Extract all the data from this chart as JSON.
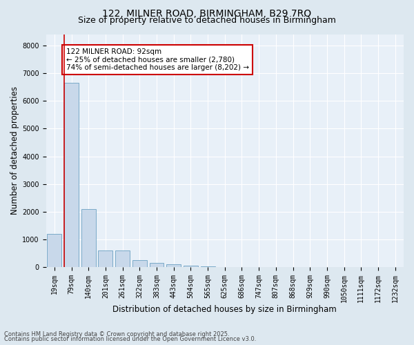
{
  "title1": "122, MILNER ROAD, BIRMINGHAM, B29 7RQ",
  "title2": "Size of property relative to detached houses in Birmingham",
  "xlabel": "Distribution of detached houses by size in Birmingham",
  "ylabel": "Number of detached properties",
  "categories": [
    "19sqm",
    "79sqm",
    "140sqm",
    "201sqm",
    "261sqm",
    "322sqm",
    "383sqm",
    "443sqm",
    "504sqm",
    "565sqm",
    "625sqm",
    "686sqm",
    "747sqm",
    "807sqm",
    "868sqm",
    "929sqm",
    "990sqm",
    "1050sqm",
    "1111sqm",
    "1172sqm",
    "1232sqm"
  ],
  "values": [
    1200,
    6650,
    2100,
    610,
    590,
    245,
    150,
    95,
    48,
    18,
    8,
    5,
    3,
    2,
    2,
    1,
    1,
    0,
    0,
    0,
    0
  ],
  "bar_color": "#c8d8ea",
  "bar_edge_color": "#7aaac8",
  "highlight_line_bar_index": 1,
  "highlight_line_color": "#cc0000",
  "annotation_text_line1": "122 MILNER ROAD: 92sqm",
  "annotation_text_line2": "← 25% of detached houses are smaller (2,780)",
  "annotation_text_line3": "74% of semi-detached houses are larger (8,202) →",
  "ylim": [
    0,
    8400
  ],
  "yticks": [
    0,
    1000,
    2000,
    3000,
    4000,
    5000,
    6000,
    7000,
    8000
  ],
  "footnote1": "Contains HM Land Registry data © Crown copyright and database right 2025.",
  "footnote2": "Contains public sector information licensed under the Open Government Licence v3.0.",
  "bg_color": "#dde8f0",
  "plot_bg_color": "#e8f0f8",
  "grid_color": "#ffffff",
  "title_fontsize": 10,
  "subtitle_fontsize": 9,
  "axis_label_fontsize": 8.5,
  "tick_fontsize": 7,
  "annotation_fontsize": 7.5,
  "footnote_fontsize": 6
}
